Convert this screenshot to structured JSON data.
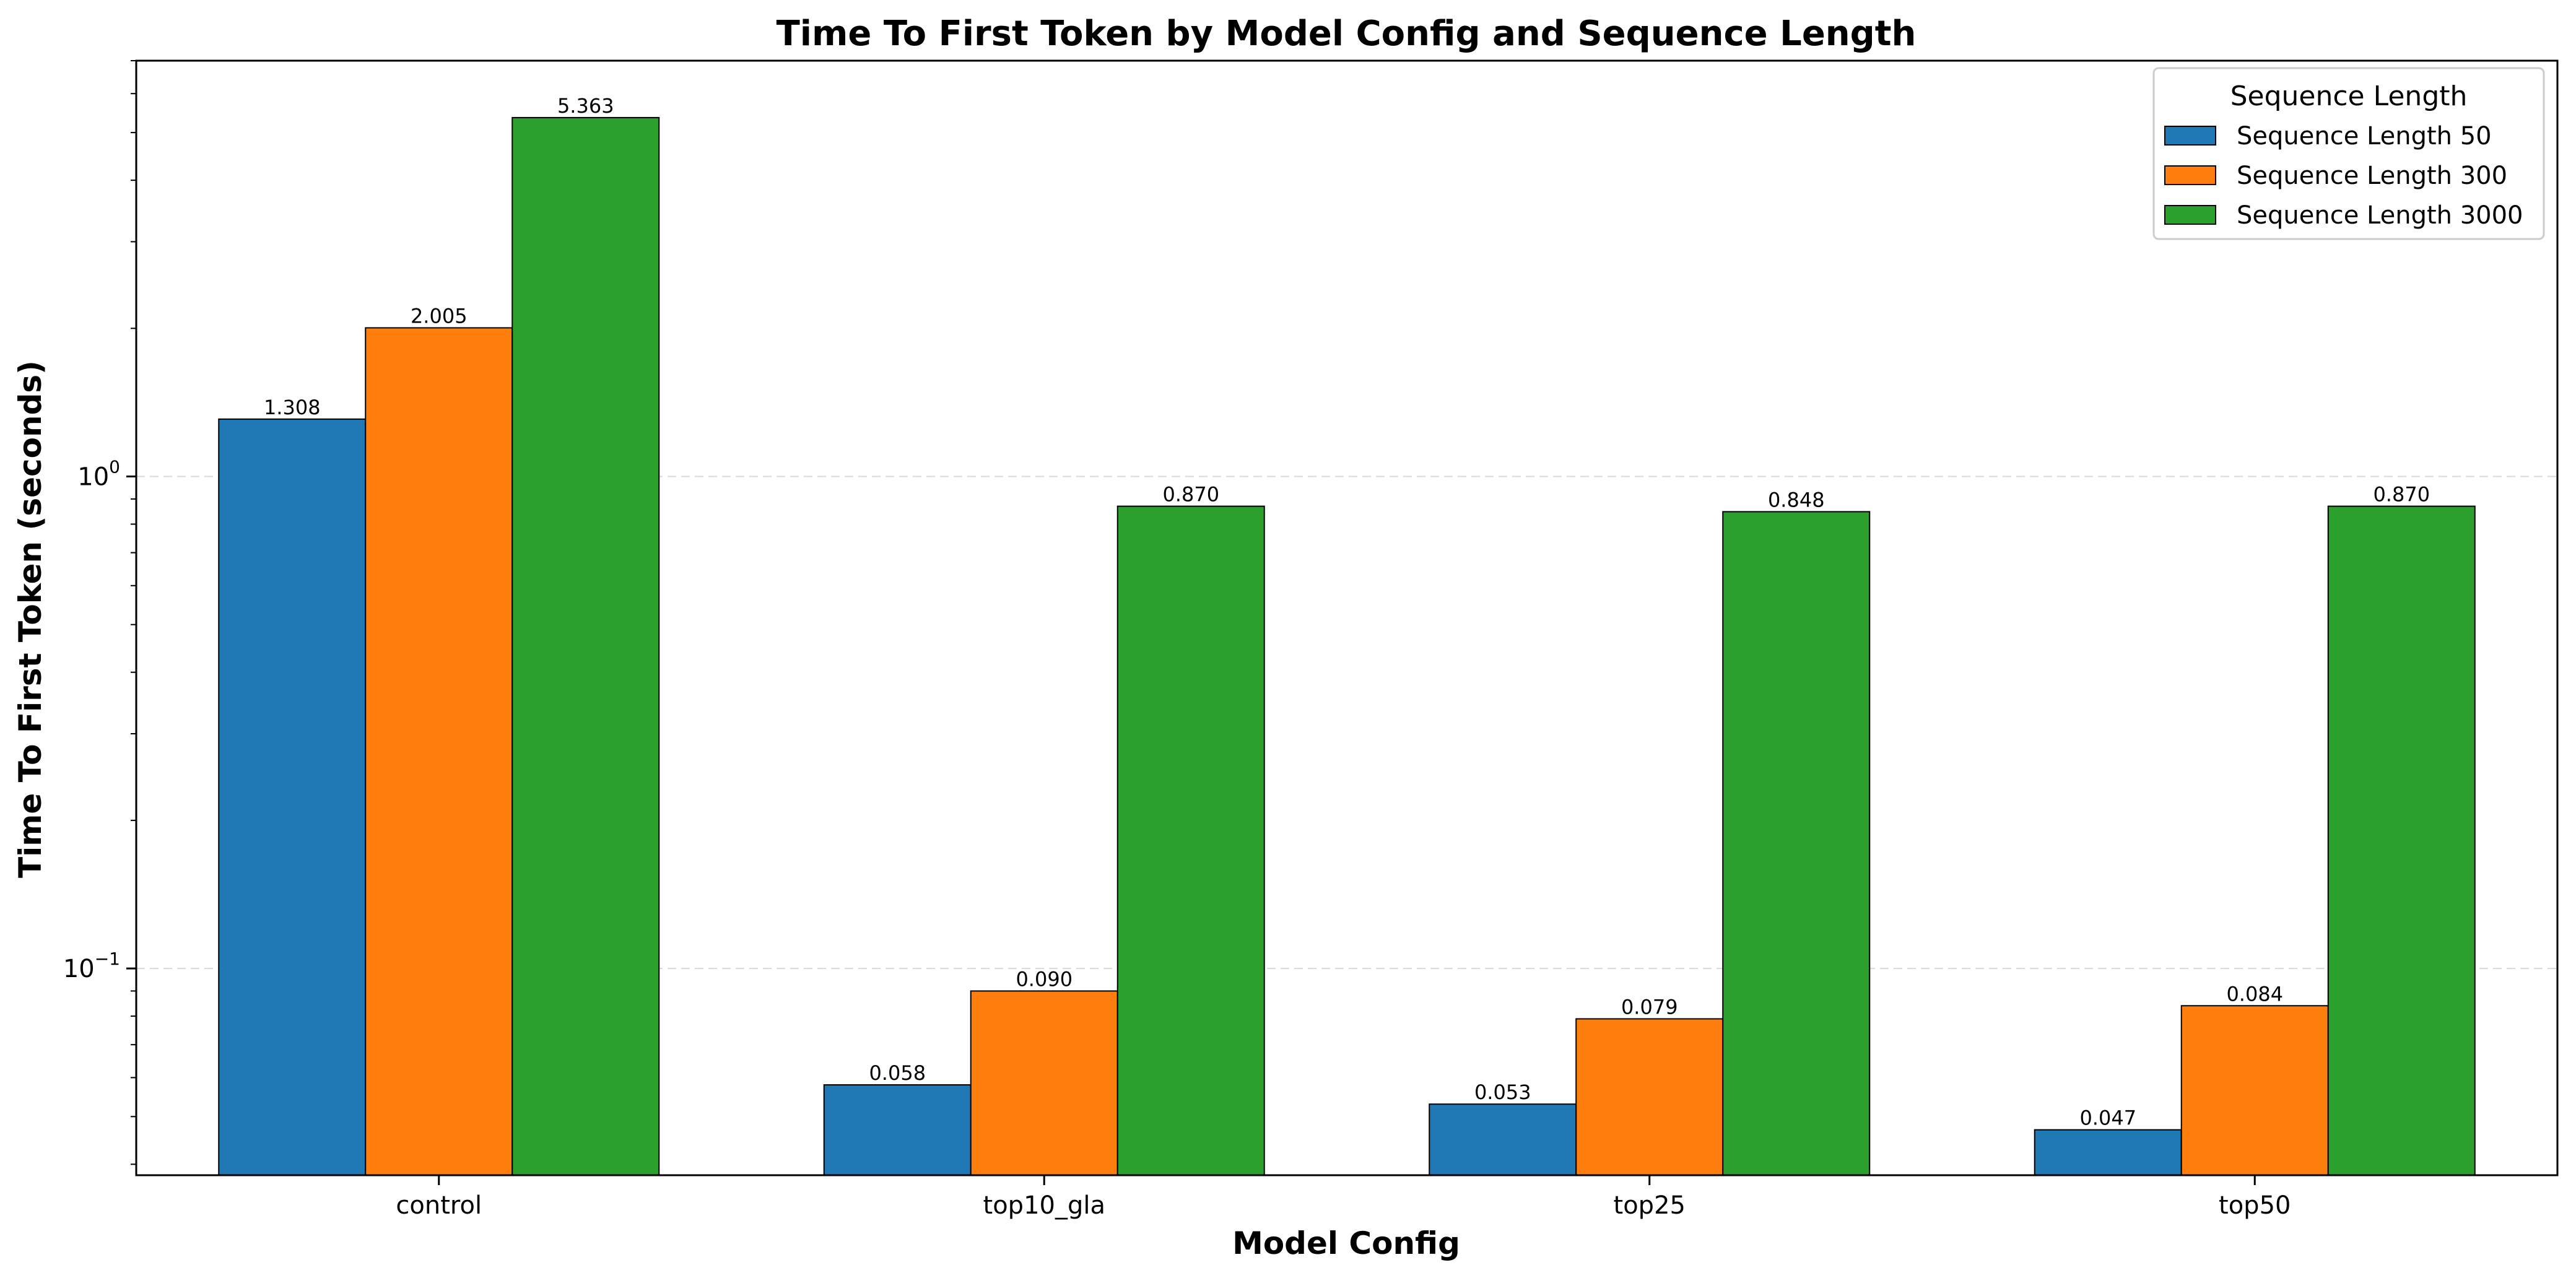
{
  "chart_data": {
    "type": "bar",
    "title": "Time To First Token by Model Config and Sequence Length",
    "xlabel": "Model Config",
    "ylabel": "Time To First Token (seconds)",
    "yscale": "log",
    "ylim": [
      0.038,
      7.0
    ],
    "yticks": [
      {
        "value": 0.1,
        "base": "10",
        "exp": "−1"
      },
      {
        "value": 1.0,
        "base": "10",
        "exp": "0"
      }
    ],
    "grid": "y-dashed",
    "categories": [
      "control",
      "top10_gla",
      "top25",
      "top50"
    ],
    "series": [
      {
        "name": "Sequence Length 50",
        "color": "#1f77b4",
        "values": [
          1.308,
          0.058,
          0.053,
          0.047
        ],
        "labels": [
          "1.308",
          "0.058",
          "0.053",
          "0.047"
        ]
      },
      {
        "name": "Sequence Length 300",
        "color": "#ff7f0e",
        "values": [
          2.005,
          0.09,
          0.079,
          0.084
        ],
        "labels": [
          "2.005",
          "0.090",
          "0.079",
          "0.084"
        ]
      },
      {
        "name": "Sequence Length 3000",
        "color": "#2ca02c",
        "values": [
          5.363,
          0.87,
          0.848,
          0.87
        ],
        "labels": [
          "5.363",
          "0.870",
          "0.848",
          "0.870"
        ]
      }
    ],
    "legend": {
      "title": "Sequence Length",
      "position": "top-right"
    }
  }
}
